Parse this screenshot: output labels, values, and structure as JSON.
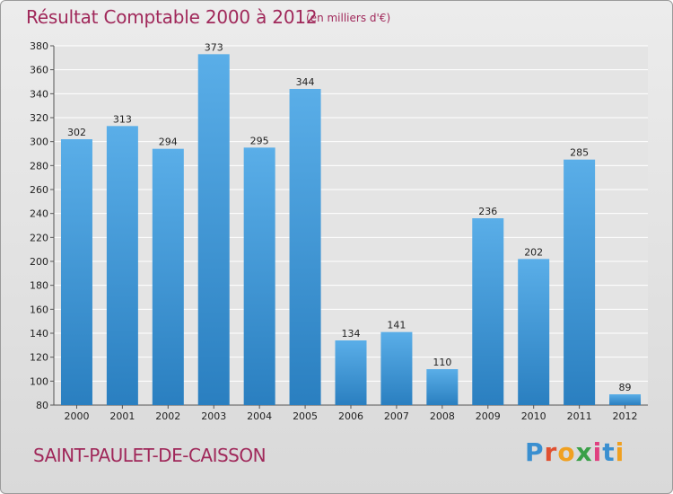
{
  "header": {
    "title": "Résultat Comptable 2000 à 2012",
    "subtitle": "(en milliers d'€)"
  },
  "footer": {
    "city": "SAINT-PAULET-DE-CAISSON",
    "logo": "Proxiti"
  },
  "colors": {
    "accent": "#a0285a",
    "bar_light": "#5aaee8",
    "bar_dark": "#2a7fc0",
    "logo_letters": [
      "#3a8fd0",
      "#e05030",
      "#f0a020",
      "#3aa048",
      "#e04080",
      "#3a8fd0",
      "#f0a020"
    ]
  },
  "chart_data": {
    "type": "bar",
    "title": "Résultat Comptable 2000 à 2012",
    "subtitle": "(en milliers d'€)",
    "categories": [
      "2000",
      "2001",
      "2002",
      "2003",
      "2004",
      "2005",
      "2006",
      "2007",
      "2008",
      "2009",
      "2010",
      "2011",
      "2012"
    ],
    "values": [
      302,
      313,
      294,
      373,
      295,
      344,
      134,
      141,
      110,
      236,
      202,
      285,
      89
    ],
    "ylim": [
      80,
      380
    ],
    "yticks": [
      80,
      100,
      120,
      140,
      160,
      180,
      200,
      220,
      240,
      260,
      280,
      300,
      320,
      340,
      360,
      380
    ],
    "grid": true,
    "legend": "none"
  }
}
